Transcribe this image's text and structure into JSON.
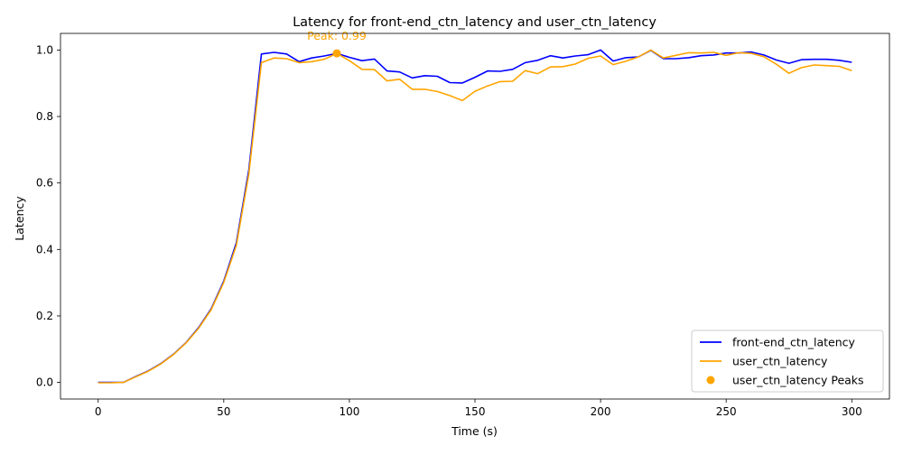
{
  "chart_data": {
    "type": "line",
    "title": "Latency for front-end_ctn_latency and user_ctn_latency",
    "xlabel": "Time (s)",
    "ylabel": "Latency",
    "xlim": [
      -15,
      315
    ],
    "ylim": [
      -0.05,
      1.05
    ],
    "xticks": [
      0,
      50,
      100,
      150,
      200,
      250,
      300
    ],
    "yticks": [
      0.0,
      0.2,
      0.4,
      0.6,
      0.8,
      1.0
    ],
    "xtick_labels": [
      "0",
      "50",
      "100",
      "150",
      "200",
      "250",
      "300"
    ],
    "ytick_labels": [
      "0.0",
      "0.2",
      "0.4",
      "0.6",
      "0.8",
      "1.0"
    ],
    "grid": false,
    "legend_position": "lower-right",
    "x": [
      0,
      5,
      10,
      15,
      20,
      25,
      30,
      35,
      40,
      45,
      50,
      55,
      60,
      65,
      70,
      75,
      80,
      85,
      90,
      95,
      100,
      105,
      110,
      115,
      120,
      125,
      130,
      135,
      140,
      145,
      150,
      155,
      160,
      165,
      170,
      175,
      180,
      185,
      190,
      195,
      200,
      205,
      210,
      215,
      220,
      225,
      230,
      235,
      240,
      245,
      250,
      255,
      260,
      265,
      270,
      275,
      280,
      285,
      290,
      295,
      300
    ],
    "series": [
      {
        "name": "front-end_ctn_latency",
        "color": "#0000ff",
        "values": [
          0.0,
          0.0,
          0.0,
          0.018,
          0.035,
          0.057,
          0.085,
          0.12,
          0.165,
          0.222,
          0.305,
          0.42,
          0.64,
          0.988,
          0.993,
          0.988,
          0.965,
          0.976,
          0.982,
          0.99,
          0.978,
          0.968,
          0.973,
          0.937,
          0.934,
          0.916,
          0.923,
          0.921,
          0.902,
          0.901,
          0.918,
          0.937,
          0.936,
          0.942,
          0.962,
          0.969,
          0.983,
          0.976,
          0.982,
          0.986,
          1.0,
          0.967,
          0.977,
          0.979,
          0.999,
          0.974,
          0.974,
          0.977,
          0.983,
          0.985,
          0.991,
          0.991,
          0.994,
          0.985,
          0.97,
          0.96,
          0.971,
          0.972,
          0.972,
          0.969,
          0.963
        ]
      },
      {
        "name": "user_ctn_latency",
        "color": "#ffa500",
        "values": [
          -0.001,
          -0.001,
          0.0,
          0.017,
          0.034,
          0.056,
          0.084,
          0.119,
          0.163,
          0.219,
          0.301,
          0.412,
          0.628,
          0.962,
          0.976,
          0.974,
          0.962,
          0.965,
          0.972,
          0.99,
          0.968,
          0.942,
          0.941,
          0.907,
          0.912,
          0.882,
          0.882,
          0.875,
          0.863,
          0.848,
          0.876,
          0.892,
          0.905,
          0.906,
          0.938,
          0.929,
          0.949,
          0.95,
          0.958,
          0.975,
          0.982,
          0.956,
          0.966,
          0.979,
          1.0,
          0.976,
          0.984,
          0.992,
          0.991,
          0.993,
          0.984,
          0.992,
          0.99,
          0.98,
          0.957,
          0.93,
          0.947,
          0.955,
          0.953,
          0.951,
          0.938
        ]
      }
    ],
    "peaks": {
      "name": "user_ctn_latency Peaks",
      "color": "#ffa500",
      "points": [
        {
          "x": 95,
          "y": 0.99
        }
      ],
      "annotation": "Peak: 0.99"
    }
  }
}
